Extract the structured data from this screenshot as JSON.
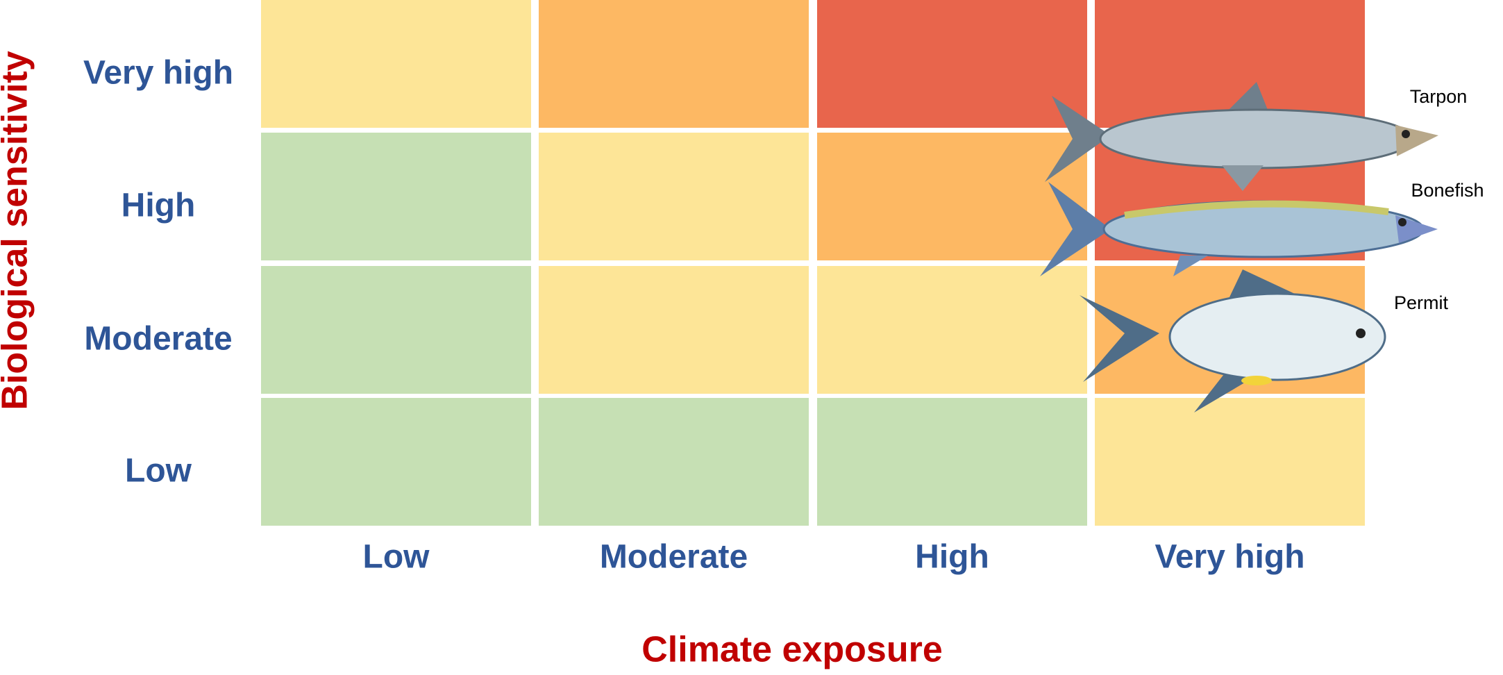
{
  "y_title": "Biological sensitivity",
  "x_title": "Climate exposure",
  "rows": [
    "Very high",
    "High",
    "Moderate",
    "Low"
  ],
  "columns": [
    "Low",
    "Moderate",
    "High",
    "Very high"
  ],
  "fish": [
    "Tarpon",
    "Bonefish",
    "Permit"
  ]
}
